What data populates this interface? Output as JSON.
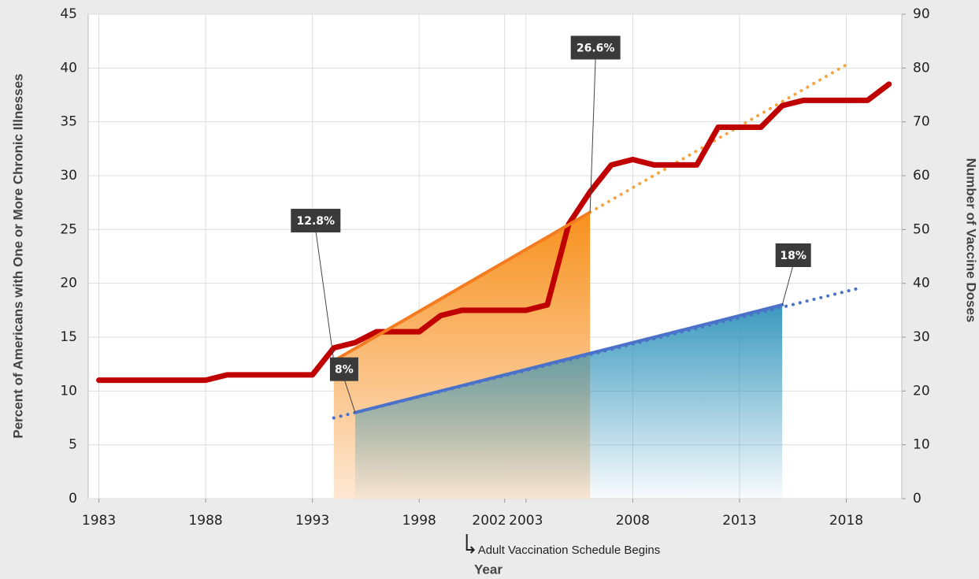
{
  "chart_data": {
    "type": "line",
    "ylabel": "Percent of Americans with One or More Chronic Illnesses",
    "y2label": "Number of Vaccine Doses",
    "xlabel": "Year",
    "xlim": [
      1982.5,
      2020.6
    ],
    "xticks": [
      1983,
      1988,
      1993,
      1998,
      2002,
      2003,
      2008,
      2013,
      2018
    ],
    "ylim": [
      0,
      45
    ],
    "yticks": [
      0,
      5,
      10,
      15,
      20,
      25,
      30,
      35,
      40,
      45
    ],
    "y2lim": [
      0,
      90
    ],
    "y2ticks": [
      0,
      10,
      20,
      30,
      40,
      50,
      60,
      70,
      80,
      90
    ],
    "grid": true,
    "annotation": {
      "x": 2002,
      "text": "Adult Vaccination Schedule Begins"
    },
    "series": [
      {
        "color": "#f47b20",
        "style": "solid",
        "fill": "orange",
        "x": [
          1994,
          2006
        ],
        "values": [
          12.8,
          26.6
        ],
        "value_labels": [
          "12.8%",
          "26.6%"
        ]
      },
      {
        "color": "#2f8fba",
        "style": "solid",
        "fill": "blue",
        "x": [
          1995,
          2015
        ],
        "values": [
          8,
          18
        ],
        "value_labels": [
          "8%",
          "18%"
        ]
      },
      {
        "color": "#f7a440",
        "style": "dotted",
        "x": [
          2006,
          2018
        ],
        "values": [
          26.6,
          40.3
        ]
      },
      {
        "color": "#4a72c9",
        "style": "dotted",
        "x": [
          1994,
          2018.5
        ],
        "values": [
          7.5,
          19.5
        ]
      },
      {
        "color": "#4a72c9",
        "style": "solid",
        "x": [
          1995,
          2015
        ],
        "values": [
          8,
          18
        ]
      },
      {
        "color": "#c00000",
        "style": "thick",
        "axis": "y2",
        "x": [
          1983,
          1988,
          1989,
          1993,
          1994,
          1995,
          1996,
          1998,
          1999,
          2000,
          2003,
          2004,
          2005,
          2006,
          2007,
          2008,
          2009,
          2011,
          2012,
          2014,
          2015,
          2016,
          2019,
          2020
        ],
        "values": [
          22,
          22,
          23,
          23,
          28,
          29,
          31,
          31,
          34,
          35,
          35,
          36,
          51,
          57,
          62,
          63,
          62,
          62,
          69,
          69,
          73,
          74,
          74,
          77
        ]
      }
    ]
  }
}
